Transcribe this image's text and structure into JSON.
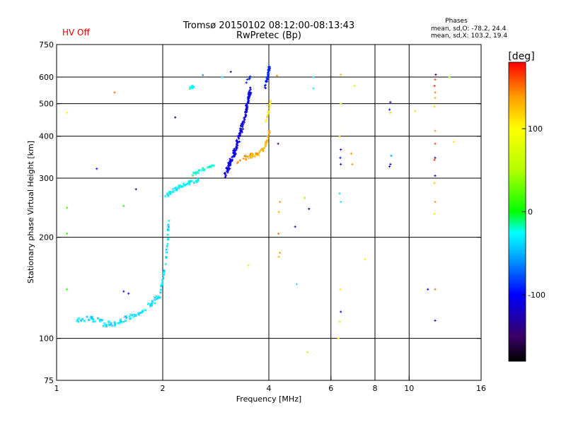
{
  "header": {
    "title_line1": "Tromsø 20150102 08:12:00-08:13:43",
    "title_line2": "RwPretec (Bp)",
    "hv_status": "HV Off",
    "hv_color": "#e00000",
    "stats_title": "Phases",
    "stats_o": "mean, sd,O: -78.2, 24.4",
    "stats_x": "mean, sd,X: 103.2, 19.4"
  },
  "colorbar": {
    "unit_label": "[deg]",
    "range": [
      -180,
      180
    ],
    "ticks": [
      {
        "value": 100,
        "label": "100"
      },
      {
        "value": 0,
        "label": "0"
      },
      {
        "value": -100,
        "label": "-100"
      }
    ],
    "stops": [
      {
        "value": -180,
        "color": "#000000"
      },
      {
        "value": -150,
        "color": "#3a0066"
      },
      {
        "value": -100,
        "color": "#0000ff"
      },
      {
        "value": -50,
        "color": "#00b4ff"
      },
      {
        "value": -25,
        "color": "#00ffff"
      },
      {
        "value": 0,
        "color": "#00ff00"
      },
      {
        "value": 50,
        "color": "#b4ff00"
      },
      {
        "value": 100,
        "color": "#ffff00"
      },
      {
        "value": 140,
        "color": "#ff9900"
      },
      {
        "value": 180,
        "color": "#ff0000"
      }
    ]
  },
  "chart_data": {
    "type": "scatter",
    "xlabel": "Frequency [MHz]",
    "ylabel": "Stationary phase Virtual Height [km]",
    "xscale": "log",
    "yscale": "log",
    "xlim": [
      1,
      16
    ],
    "ylim": [
      75,
      750
    ],
    "x_ticks": [
      {
        "value": 1,
        "label": "1"
      },
      {
        "value": 2,
        "label": "2"
      },
      {
        "value": 4,
        "label": "4"
      },
      {
        "value": 6,
        "label": "6"
      },
      {
        "value": 8,
        "label": "8"
      },
      {
        "value": 10,
        "label": "10"
      },
      {
        "value": 16,
        "label": "16"
      }
    ],
    "x_grid": [
      2,
      4,
      6,
      8,
      10
    ],
    "y_ticks": [
      {
        "value": 75,
        "label": "75"
      },
      {
        "value": 100,
        "label": "100"
      },
      {
        "value": 200,
        "label": "200"
      },
      {
        "value": 300,
        "label": "300"
      },
      {
        "value": 400,
        "label": "400"
      },
      {
        "value": 500,
        "label": "500"
      },
      {
        "value": 600,
        "label": "600"
      },
      {
        "value": 750,
        "label": "750"
      }
    ],
    "y_grid": [
      100,
      200,
      300,
      400,
      500,
      600
    ],
    "grid": true,
    "traces": [
      {
        "x": [
          1.12,
          1.22,
          1.3,
          1.38,
          1.46,
          1.55,
          1.65,
          1.78,
          1.88,
          1.96
        ],
        "y": [
          112,
          115,
          113,
          110,
          111,
          114,
          117,
          122,
          128,
          134
        ],
        "phase": -35,
        "marker": "cross",
        "jitter": 0.018,
        "per": 10
      },
      {
        "x": [
          1.96,
          2.0,
          2.04,
          2.07,
          2.08
        ],
        "y": [
          134,
          150,
          170,
          200,
          228
        ],
        "phase": -38,
        "marker": "cross",
        "jitter": 0.012,
        "per": 8
      },
      {
        "x": [
          2.03,
          2.1,
          2.2,
          2.3,
          2.45,
          2.55
        ],
        "y": [
          262,
          272,
          280,
          287,
          293,
          297
        ],
        "phase": -30,
        "marker": "cross",
        "jitter": 0.012,
        "per": 10
      },
      {
        "x": [
          2.4,
          2.5,
          2.6,
          2.7,
          2.8
        ],
        "y": [
          305,
          312,
          318,
          322,
          326
        ],
        "phase": -20,
        "marker": "cross",
        "jitter": 0.01,
        "per": 5
      },
      {
        "x": [
          2.35,
          2.42,
          2.5
        ],
        "y": [
          550,
          560,
          570
        ],
        "phase": -25,
        "marker": "cross",
        "jitter": 0.008,
        "per": 4
      },
      {
        "x": [
          3.0,
          3.1,
          3.2,
          3.3,
          3.4,
          3.5,
          3.55
        ],
        "y": [
          305,
          330,
          360,
          400,
          450,
          510,
          560
        ],
        "phase": -110,
        "marker": "plus",
        "jitter": 0.022,
        "per": 30
      },
      {
        "x": [
          3.45,
          3.55
        ],
        "y": [
          580,
          600
        ],
        "phase": -95,
        "marker": "plus",
        "jitter": 0.012,
        "per": 6
      },
      {
        "x": [
          3.9,
          3.95,
          3.98,
          4.0,
          4.02
        ],
        "y": [
          560,
          590,
          610,
          630,
          650
        ],
        "phase": -90,
        "marker": "plus",
        "jitter": 0.012,
        "per": 10
      },
      {
        "x": [
          3.5,
          3.62,
          3.75,
          3.88,
          3.96,
          4.02
        ],
        "y": [
          345,
          350,
          355,
          368,
          390,
          420
        ],
        "phase": 130,
        "marker": "plus",
        "jitter": 0.012,
        "per": 10
      },
      {
        "x": [
          3.93,
          4.0,
          4.05
        ],
        "y": [
          440,
          480,
          510
        ],
        "phase": 112,
        "marker": "plus",
        "jitter": 0.01,
        "per": 8
      },
      {
        "x": [
          3.4,
          3.55,
          3.7
        ],
        "y": [
          348,
          352,
          356
        ],
        "phase": 142,
        "marker": "plus",
        "jitter": 0.008,
        "per": 5
      },
      {
        "x": [
          3.2,
          3.35,
          3.5
        ],
        "y": [
          330,
          345,
          340
        ],
        "phase": 150,
        "marker": "plus",
        "jitter": 0.008,
        "per": 3
      }
    ],
    "points": [
      {
        "x": 1.07,
        "y": 470,
        "phase": 100
      },
      {
        "x": 1.07,
        "y": 245,
        "phase": 20
      },
      {
        "x": 1.07,
        "y": 205,
        "phase": 15
      },
      {
        "x": 1.07,
        "y": 140,
        "phase": 10
      },
      {
        "x": 1.46,
        "y": 540,
        "phase": 150
      },
      {
        "x": 1.3,
        "y": 320,
        "phase": -95
      },
      {
        "x": 1.55,
        "y": 248,
        "phase": 5
      },
      {
        "x": 1.68,
        "y": 278,
        "phase": -140
      },
      {
        "x": 1.55,
        "y": 138,
        "phase": -110
      },
      {
        "x": 1.6,
        "y": 136,
        "phase": -100
      },
      {
        "x": 2.17,
        "y": 455,
        "phase": -160
      },
      {
        "x": 2.6,
        "y": 608,
        "phase": -60
      },
      {
        "x": 2.95,
        "y": 600,
        "phase": -40
      },
      {
        "x": 3.12,
        "y": 622,
        "phase": -120
      },
      {
        "x": 4.22,
        "y": 605,
        "phase": 150
      },
      {
        "x": 4.25,
        "y": 380,
        "phase": -150
      },
      {
        "x": 4.3,
        "y": 255,
        "phase": 140
      },
      {
        "x": 4.27,
        "y": 238,
        "phase": 130
      },
      {
        "x": 4.26,
        "y": 205,
        "phase": 150
      },
      {
        "x": 4.3,
        "y": 180,
        "phase": 140
      },
      {
        "x": 4.27,
        "y": 175,
        "phase": 130
      },
      {
        "x": 4.75,
        "y": 215,
        "phase": -130
      },
      {
        "x": 4.8,
        "y": 145,
        "phase": -30
      },
      {
        "x": 5.05,
        "y": 262,
        "phase": 40
      },
      {
        "x": 5.2,
        "y": 243,
        "phase": -140
      },
      {
        "x": 5.15,
        "y": 91,
        "phase": 60
      },
      {
        "x": 5.35,
        "y": 555,
        "phase": -30
      },
      {
        "x": 5.35,
        "y": 600,
        "phase": -40
      },
      {
        "x": 3.5,
        "y": 165,
        "phase": 110
      },
      {
        "x": 6.4,
        "y": 610,
        "phase": 130
      },
      {
        "x": 6.4,
        "y": 500,
        "phase": 80
      },
      {
        "x": 6.35,
        "y": 400,
        "phase": 120
      },
      {
        "x": 6.4,
        "y": 365,
        "phase": -100
      },
      {
        "x": 6.38,
        "y": 345,
        "phase": -110
      },
      {
        "x": 6.4,
        "y": 330,
        "phase": -120
      },
      {
        "x": 6.35,
        "y": 270,
        "phase": -40
      },
      {
        "x": 6.4,
        "y": 255,
        "phase": -30
      },
      {
        "x": 6.38,
        "y": 140,
        "phase": 110
      },
      {
        "x": 6.4,
        "y": 120,
        "phase": -110
      },
      {
        "x": 6.35,
        "y": 112,
        "phase": 110
      },
      {
        "x": 6.3,
        "y": 100,
        "phase": 100
      },
      {
        "x": 6.85,
        "y": 355,
        "phase": 140
      },
      {
        "x": 6.9,
        "y": 330,
        "phase": 140
      },
      {
        "x": 7.0,
        "y": 565,
        "phase": 60
      },
      {
        "x": 7.5,
        "y": 172,
        "phase": 110
      },
      {
        "x": 8.85,
        "y": 505,
        "phase": -120
      },
      {
        "x": 8.8,
        "y": 480,
        "phase": -110
      },
      {
        "x": 8.85,
        "y": 470,
        "phase": 120
      },
      {
        "x": 8.9,
        "y": 350,
        "phase": -60
      },
      {
        "x": 8.85,
        "y": 330,
        "phase": -120
      },
      {
        "x": 8.8,
        "y": 325,
        "phase": -110
      },
      {
        "x": 10.4,
        "y": 475,
        "phase": 110
      },
      {
        "x": 11.3,
        "y": 140,
        "phase": -110
      },
      {
        "x": 11.9,
        "y": 610,
        "phase": -150
      },
      {
        "x": 11.85,
        "y": 590,
        "phase": 160
      },
      {
        "x": 11.8,
        "y": 565,
        "phase": 170
      },
      {
        "x": 11.85,
        "y": 540,
        "phase": 150
      },
      {
        "x": 11.85,
        "y": 520,
        "phase": 130
      },
      {
        "x": 11.8,
        "y": 490,
        "phase": 120
      },
      {
        "x": 11.85,
        "y": 415,
        "phase": 140
      },
      {
        "x": 11.85,
        "y": 380,
        "phase": 160
      },
      {
        "x": 11.85,
        "y": 345,
        "phase": -140
      },
      {
        "x": 11.8,
        "y": 340,
        "phase": 170
      },
      {
        "x": 11.85,
        "y": 305,
        "phase": -110
      },
      {
        "x": 11.8,
        "y": 290,
        "phase": 120
      },
      {
        "x": 11.85,
        "y": 255,
        "phase": 140
      },
      {
        "x": 11.8,
        "y": 235,
        "phase": 110
      },
      {
        "x": 11.85,
        "y": 140,
        "phase": 150
      },
      {
        "x": 11.85,
        "y": 113,
        "phase": -110
      },
      {
        "x": 13.0,
        "y": 600,
        "phase": 40
      },
      {
        "x": 13.4,
        "y": 385,
        "phase": 110
      }
    ]
  }
}
